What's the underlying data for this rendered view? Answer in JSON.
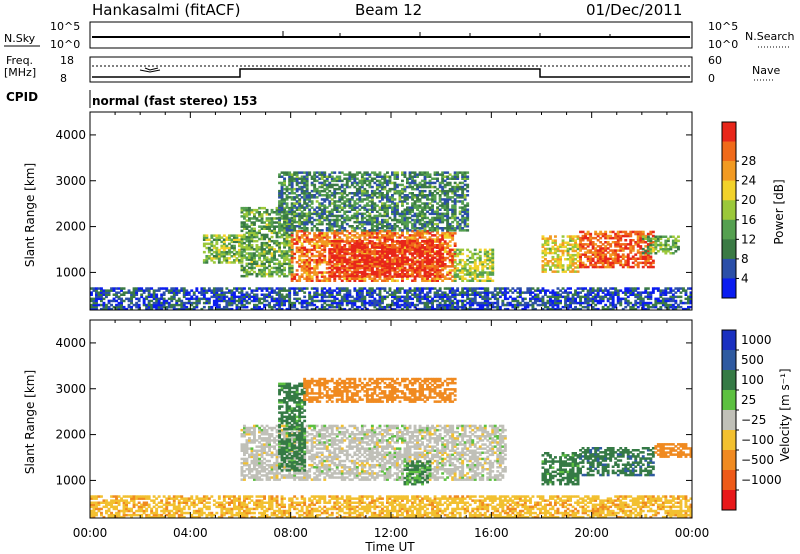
{
  "header": {
    "station": "Hankasalmi (fitACF)",
    "beam": "Beam 12",
    "date": "01/Dec/2011"
  },
  "top_panels": {
    "nsky_label": "N.Sky",
    "nsky_ticks": [
      "10^5",
      "10^0"
    ],
    "nsearch_label": "N.Search",
    "nsearch_ticks": [
      "10^5",
      "10^0"
    ],
    "freq_label_1": "Freq.",
    "freq_label_2": "[MHz]",
    "freq_ticks": [
      "18",
      "8"
    ],
    "nave_label": "Nave",
    "nave_ticks": [
      "60",
      "0"
    ],
    "cpid_label": "CPID",
    "cpid_text": "normal (fast stereo) 153"
  },
  "axes": {
    "ylabel": "Slant Range [km]",
    "yticks": [
      1000,
      2000,
      3000,
      4000
    ],
    "xlabel": "Time UT",
    "xticks": [
      "00:00",
      "04:00",
      "08:00",
      "12:00",
      "16:00",
      "20:00",
      "00:00"
    ]
  },
  "power_colorbar": {
    "label": "Power [dB]",
    "ticks": [
      "4",
      "8",
      "12",
      "16",
      "20",
      "24",
      "28"
    ],
    "colors": [
      "#0a1cf0",
      "#2b4fa8",
      "#3a7a44",
      "#55a050",
      "#9bc83a",
      "#f2d22a",
      "#f29a22",
      "#f06a1a",
      "#e8261a"
    ]
  },
  "velocity_colorbar": {
    "label": "Velocity [m s⁻¹]",
    "ticks": [
      "1000",
      "500",
      "100",
      "25",
      "−25",
      "−100",
      "−500",
      "−1000"
    ],
    "colors": [
      "#1a30c0",
      "#2f5aa0",
      "#357a45",
      "#5cc040",
      "#c0c0b8",
      "#f2c030",
      "#f08a20",
      "#ee5a18",
      "#e8181a"
    ]
  },
  "chart_data": [
    {
      "type": "heatmap",
      "title": "Power [dB]",
      "xlabel": "Time UT",
      "ylabel": "Slant Range [km]",
      "x_range_hours": [
        0,
        24
      ],
      "y_range_km": [
        180,
        4500
      ],
      "value_range": [
        0,
        30
      ],
      "grid": false,
      "echo_regions": [
        {
          "t_start": 0.0,
          "t_end": 24.0,
          "r_start": 180,
          "r_end": 650,
          "value": 5
        },
        {
          "t_start": 4.5,
          "t_end": 6.0,
          "r_start": 1200,
          "r_end": 1800,
          "value": 14
        },
        {
          "t_start": 6.0,
          "t_end": 8.0,
          "r_start": 900,
          "r_end": 2400,
          "value": 12
        },
        {
          "t_start": 8.0,
          "t_end": 14.5,
          "r_start": 800,
          "r_end": 1900,
          "value": 24
        },
        {
          "t_start": 9.5,
          "t_end": 14.0,
          "r_start": 900,
          "r_end": 1700,
          "value": 29
        },
        {
          "t_start": 7.5,
          "t_end": 15.0,
          "r_start": 1900,
          "r_end": 3200,
          "value": 9
        },
        {
          "t_start": 14.5,
          "t_end": 16.0,
          "r_start": 800,
          "r_end": 1500,
          "value": 15
        },
        {
          "t_start": 18.0,
          "t_end": 19.5,
          "r_start": 1000,
          "r_end": 1800,
          "value": 18
        },
        {
          "t_start": 19.5,
          "t_end": 22.5,
          "r_start": 1100,
          "r_end": 1900,
          "value": 26
        },
        {
          "t_start": 22.0,
          "t_end": 23.5,
          "r_start": 1400,
          "r_end": 1800,
          "value": 12
        }
      ]
    },
    {
      "type": "heatmap",
      "title": "Velocity [m s⁻¹]",
      "xlabel": "Time UT",
      "ylabel": "Slant Range [km]",
      "x_range_hours": [
        0,
        24
      ],
      "y_range_km": [
        180,
        4500
      ],
      "value_range": [
        -1000,
        1000
      ],
      "grid": false,
      "echo_regions": [
        {
          "t_start": 0.0,
          "t_end": 24.0,
          "r_start": 180,
          "r_end": 650,
          "value": -80
        },
        {
          "t_start": 6.0,
          "t_end": 16.5,
          "r_start": 1000,
          "r_end": 2200,
          "value": 0
        },
        {
          "t_start": 7.5,
          "t_end": 8.5,
          "r_start": 1200,
          "r_end": 3100,
          "value": 150
        },
        {
          "t_start": 8.5,
          "t_end": 14.5,
          "r_start": 2700,
          "r_end": 3200,
          "value": -300
        },
        {
          "t_start": 12.5,
          "t_end": 13.5,
          "r_start": 900,
          "r_end": 1400,
          "value": 120
        },
        {
          "t_start": 18.0,
          "t_end": 19.5,
          "r_start": 900,
          "r_end": 1600,
          "value": 150
        },
        {
          "t_start": 19.5,
          "t_end": 22.5,
          "r_start": 1100,
          "r_end": 1700,
          "value": 400
        },
        {
          "t_start": 22.5,
          "t_end": 24.0,
          "r_start": 1500,
          "r_end": 1800,
          "value": -300
        }
      ]
    }
  ]
}
